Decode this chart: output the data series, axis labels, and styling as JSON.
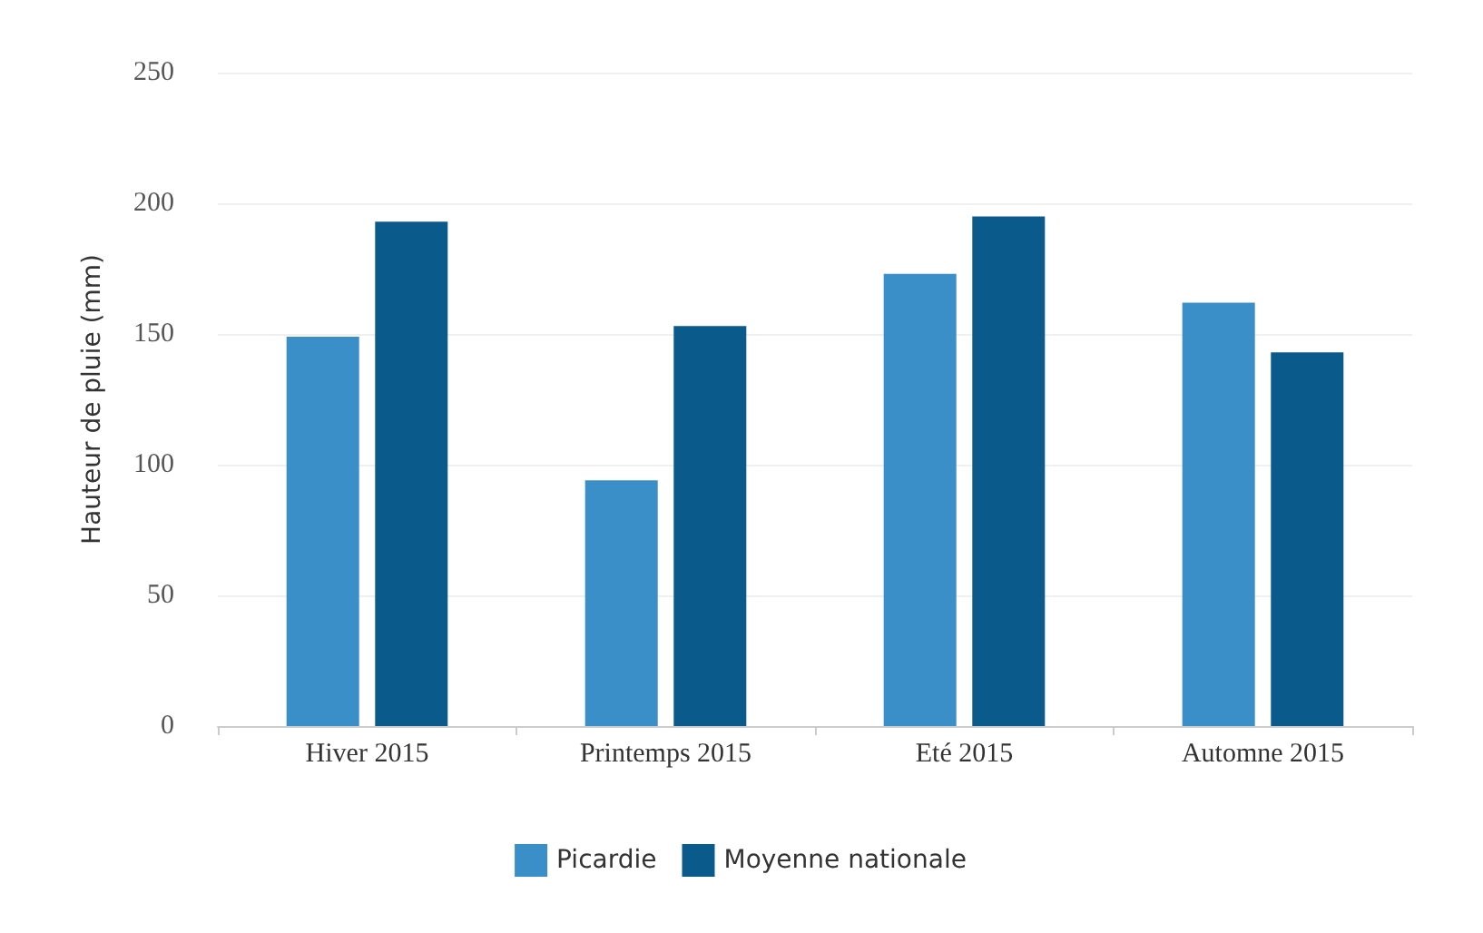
{
  "chart_data": {
    "type": "bar",
    "ylabel": "Hauteur de pluie (mm)",
    "categories": [
      "Hiver 2015",
      "Printemps 2015",
      "Eté 2015",
      "Automne 2015"
    ],
    "series": [
      {
        "name": "Picardie",
        "color": "#3a8fc8",
        "values": [
          149,
          94,
          173,
          162
        ]
      },
      {
        "name": "Moyenne nationale",
        "color": "#0b5a8c",
        "values": [
          193,
          153,
          195,
          143
        ]
      }
    ],
    "ylim": [
      0,
      250
    ],
    "yticks": [
      0,
      50,
      100,
      150,
      200,
      250
    ],
    "grid": "y",
    "legend": "bottom"
  }
}
